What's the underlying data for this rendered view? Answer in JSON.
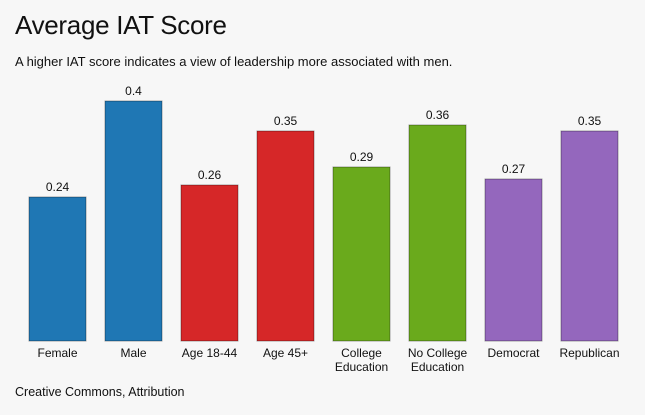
{
  "title": "Average IAT Score",
  "subtitle": "A higher IAT score indicates a view of leadership more associated with men.",
  "footer": "Creative Commons, Attribution",
  "chart_data": {
    "type": "bar",
    "categories": [
      "Female",
      "Male",
      "Age 18-44",
      "Age 45+",
      "College Education",
      "No College Education",
      "Democrat",
      "Republican"
    ],
    "category_lines": [
      [
        "Female"
      ],
      [
        "Male"
      ],
      [
        "Age 18-44"
      ],
      [
        "Age 45+"
      ],
      [
        "College",
        "Education"
      ],
      [
        "No College",
        "Education"
      ],
      [
        "Democrat"
      ],
      [
        "Republican"
      ]
    ],
    "values": [
      0.24,
      0.4,
      0.26,
      0.35,
      0.29,
      0.36,
      0.27,
      0.35
    ],
    "value_labels": [
      "0.24",
      "0.4",
      "0.26",
      "0.35",
      "0.29",
      "0.36",
      "0.27",
      "0.35"
    ],
    "colors": [
      "#1f77b4",
      "#1f77b4",
      "#d62728",
      "#d62728",
      "#6aaa1c",
      "#6aaa1c",
      "#9467bd",
      "#9467bd"
    ],
    "title": "Average IAT Score",
    "xlabel": "",
    "ylabel": "",
    "ylim": [
      0,
      0.4
    ],
    "grid": false,
    "legend": "none"
  }
}
